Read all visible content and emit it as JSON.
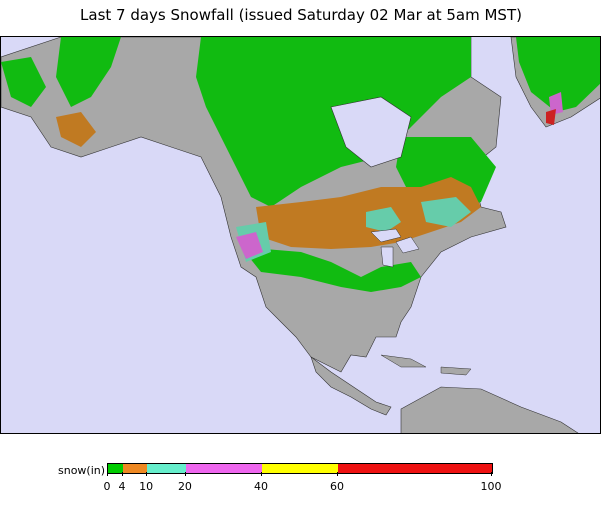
{
  "title": "Last 7 days Snowfall (issued Saturday 02 Mar at 5am MST)",
  "legend": {
    "label": "snow(in)",
    "ticks": [
      "0",
      "4",
      "10",
      "20",
      "40",
      "60",
      "100"
    ],
    "bins": [
      {
        "from": 0,
        "to": 4,
        "color": "#00cc00"
      },
      {
        "from": 4,
        "to": 10,
        "color": "#ee8822"
      },
      {
        "from": 10,
        "to": 20,
        "color": "#66eecc"
      },
      {
        "from": 20,
        "to": 40,
        "color": "#ee66ee"
      },
      {
        "from": 40,
        "to": 60,
        "color": "#ffff00"
      },
      {
        "from": 60,
        "to": 100,
        "color": "#ee1111"
      }
    ]
  },
  "map_colors": {
    "ocean": "#d9d9f7",
    "land": "#a8a8a8",
    "snow_light": "#11bb11",
    "snow_moderate": "#c07a22",
    "snow_heavy": "#66ccaa",
    "snow_very_heavy": "#cc66cc",
    "snow_extreme": "#cc2222"
  }
}
